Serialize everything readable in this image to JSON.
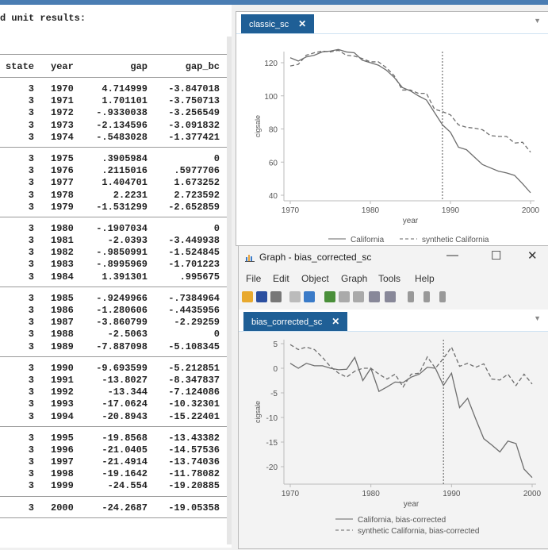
{
  "results": {
    "title": "d unit results:",
    "columns": [
      "state",
      "year",
      "gap",
      "gap_bc"
    ],
    "groups": [
      [
        [
          "3",
          "1970",
          "4.714999",
          "-3.847018"
        ],
        [
          "3",
          "1971",
          "1.701101",
          "-3.750713"
        ],
        [
          "3",
          "1972",
          "-.9330038",
          "-3.256549"
        ],
        [
          "3",
          "1973",
          "-2.134596",
          "-3.091832"
        ],
        [
          "3",
          "1974",
          "-.5483028",
          "-1.377421"
        ]
      ],
      [
        [
          "3",
          "1975",
          ".3905984",
          "0"
        ],
        [
          "3",
          "1976",
          ".2115016",
          ".5977706"
        ],
        [
          "3",
          "1977",
          "1.404701",
          "1.673252"
        ],
        [
          "3",
          "1978",
          "2.2231",
          "2.723592"
        ],
        [
          "3",
          "1979",
          "-1.531299",
          "-2.652859"
        ]
      ],
      [
        [
          "3",
          "1980",
          "-.1907034",
          "0"
        ],
        [
          "3",
          "1981",
          "-2.0393",
          "-3.449938"
        ],
        [
          "3",
          "1982",
          "-.9850991",
          "-1.524845"
        ],
        [
          "3",
          "1983",
          "-.8995969",
          "-1.701223"
        ],
        [
          "3",
          "1984",
          "1.391301",
          ".995675"
        ]
      ],
      [
        [
          "3",
          "1985",
          "-.9249966",
          "-.7384964"
        ],
        [
          "3",
          "1986",
          "-1.280606",
          "-.4435956"
        ],
        [
          "3",
          "1987",
          "-3.860799",
          "-2.29259"
        ],
        [
          "3",
          "1988",
          "-2.5063",
          "0"
        ],
        [
          "3",
          "1989",
          "-7.887098",
          "-5.108345"
        ]
      ],
      [
        [
          "3",
          "1990",
          "-9.693599",
          "-5.212851"
        ],
        [
          "3",
          "1991",
          "-13.8027",
          "-8.347837"
        ],
        [
          "3",
          "1992",
          "-13.344",
          "-7.124086"
        ],
        [
          "3",
          "1993",
          "-17.0624",
          "-10.32301"
        ],
        [
          "3",
          "1994",
          "-20.8943",
          "-15.22401"
        ]
      ],
      [
        [
          "3",
          "1995",
          "-19.8568",
          "-13.43382"
        ],
        [
          "3",
          "1996",
          "-21.0405",
          "-14.57536"
        ],
        [
          "3",
          "1997",
          "-21.4914",
          "-13.74036"
        ],
        [
          "3",
          "1998",
          "-19.1642",
          "-11.78082"
        ],
        [
          "3",
          "1999",
          "-24.554",
          "-19.20885"
        ]
      ],
      [
        [
          "3",
          "2000",
          "-24.2687",
          "-19.05358"
        ]
      ]
    ]
  },
  "window1": {
    "tab": "classic_sc",
    "close": "✕"
  },
  "window2": {
    "title": "Graph - bias_corrected_sc",
    "minimize": "—",
    "maximize": "☐",
    "close": "✕",
    "menu": [
      "File",
      "Edit",
      "Object",
      "Graph",
      "Tools",
      "Help"
    ],
    "tab": "bias_corrected_sc",
    "tab_close": "✕"
  },
  "toolbar_icons": [
    "open-icon",
    "save-icon",
    "print-icon",
    "copy-icon",
    "paste-icon",
    "graph-editor-icon",
    "rename-icon",
    "move-icon",
    "undo-icon",
    "redo-icon",
    "record-icon",
    "pause-icon",
    "play-icon"
  ],
  "chart_data": [
    {
      "type": "line",
      "xlabel": "year",
      "ylabel": "cigsale",
      "xlim": [
        1970,
        2000
      ],
      "ylim": [
        40,
        130
      ],
      "xticks": [
        1970,
        1980,
        1990,
        2000
      ],
      "yticks": [
        40,
        60,
        80,
        100,
        120
      ],
      "vline": 1989,
      "legend_position": "bottom",
      "grid": false,
      "x": [
        1970,
        1971,
        1972,
        1973,
        1974,
        1975,
        1976,
        1977,
        1978,
        1979,
        1980,
        1981,
        1982,
        1983,
        1984,
        1985,
        1986,
        1987,
        1988,
        1989,
        1990,
        1991,
        1992,
        1993,
        1994,
        1995,
        1996,
        1997,
        1998,
        1999,
        2000
      ],
      "series": [
        {
          "name": "California",
          "style": "solid",
          "values": [
            123,
            121,
            123.5,
            124.5,
            126.5,
            127,
            128,
            126.5,
            126,
            121.5,
            120,
            118.5,
            115.5,
            111,
            105,
            103,
            100,
            97.5,
            90,
            82.5,
            78,
            69,
            67.5,
            63,
            58.5,
            56.5,
            54.5,
            53.5,
            52,
            47,
            41.5
          ]
        },
        {
          "name": "synthetic California",
          "style": "dashed",
          "values": [
            118,
            119,
            124.5,
            126,
            127,
            126.5,
            127.5,
            124.5,
            124,
            122.5,
            120.5,
            120.5,
            117,
            112,
            103.5,
            103.5,
            101.5,
            101.5,
            92,
            90.5,
            88.5,
            82.5,
            81,
            80.5,
            79.5,
            76,
            75.5,
            75.5,
            71.5,
            72,
            66
          ]
        }
      ]
    },
    {
      "type": "line",
      "xlabel": "year",
      "ylabel": "cigsale",
      "xlim": [
        1970,
        2000
      ],
      "ylim": [
        -23,
        6
      ],
      "xticks": [
        1970,
        1980,
        1990,
        2000
      ],
      "yticks": [
        5,
        0,
        -5,
        -10,
        -15,
        -20
      ],
      "vline": 1989,
      "legend_position": "bottom",
      "grid": false,
      "x": [
        1970,
        1971,
        1972,
        1973,
        1974,
        1975,
        1976,
        1977,
        1978,
        1979,
        1980,
        1981,
        1982,
        1983,
        1984,
        1985,
        1986,
        1987,
        1988,
        1989,
        1990,
        1991,
        1992,
        1993,
        1994,
        1995,
        1996,
        1997,
        1998,
        1999,
        2000
      ],
      "series": [
        {
          "name": "California, bias-corrected",
          "style": "solid",
          "values": [
            1,
            0,
            1,
            0.5,
            0.5,
            0,
            -0.3,
            -0.2,
            2.2,
            -2.5,
            0,
            -4.7,
            -3.8,
            -2.8,
            -2.9,
            -1.8,
            -1.2,
            0.2,
            0,
            -3.5,
            -1,
            -8,
            -6.1,
            -10.3,
            -14.3,
            -15.6,
            -17,
            -14.8,
            -15.3,
            -20.5,
            -22.2
          ]
        },
        {
          "name": "synthetic California, bias-corrected",
          "style": "dashed",
          "values": [
            4.8,
            3.8,
            4.3,
            3.8,
            2.2,
            0.3,
            -1,
            -1.8,
            -0.6,
            0,
            0,
            -1.2,
            -2.2,
            -1.2,
            -3.8,
            -1.2,
            -1,
            2.3,
            0,
            2,
            4.3,
            0.4,
            1,
            0.2,
            0.9,
            -2.2,
            -2.4,
            -1.2,
            -3.5,
            -1.2,
            -3.2
          ]
        }
      ]
    }
  ]
}
